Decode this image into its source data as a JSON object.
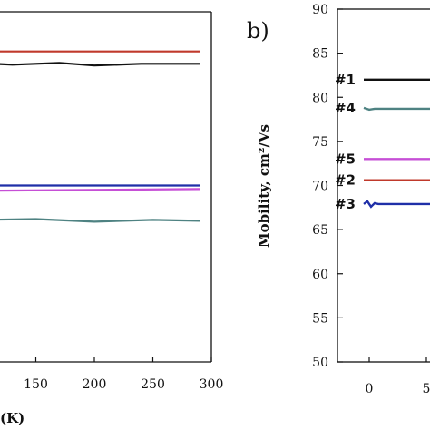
{
  "chart_data": [
    {
      "type": "line",
      "xlim": [
        100,
        300
      ],
      "x_ticks": [
        150,
        200,
        250,
        300
      ],
      "x_tick_labels": [
        "150",
        "200",
        "250",
        "300"
      ],
      "xlabel_visible": "(K)",
      "grid": false,
      "series": [
        {
          "color": "#c0392b",
          "x": [
            100,
            290
          ],
          "y": [
            85.2,
            85.2
          ]
        },
        {
          "color": "#111111",
          "x": [
            100,
            130,
            170,
            200,
            240,
            290
          ],
          "y": [
            83.9,
            83.7,
            83.9,
            83.6,
            83.8,
            83.8
          ]
        },
        {
          "color": "#1f2fa8",
          "x": [
            100,
            290
          ],
          "y": [
            70.0,
            70.0
          ]
        },
        {
          "color": "#c64fd6",
          "x": [
            100,
            290
          ],
          "y": [
            69.4,
            69.6
          ]
        },
        {
          "color": "#4e8282",
          "x": [
            100,
            150,
            200,
            250,
            290
          ],
          "y": [
            66.1,
            66.2,
            65.9,
            66.1,
            66.0
          ]
        }
      ]
    },
    {
      "type": "line",
      "panel_label": "b)",
      "ylabel": "Mobility, cm²/Vs",
      "ylim": [
        50,
        90
      ],
      "y_ticks": [
        50,
        55,
        60,
        65,
        70,
        75,
        80,
        85,
        90
      ],
      "y_tick_labels": [
        "50",
        "55",
        "60",
        "65",
        "70",
        "75",
        "80",
        "85",
        "90"
      ],
      "x_tick_labels_visible": [
        "0",
        "5"
      ],
      "grid": false,
      "legend": [
        {
          "label": "#1",
          "color": "#111111",
          "y": 82.0
        },
        {
          "label": "#4",
          "color": "#4e8282",
          "y": 78.8
        },
        {
          "label": "#5",
          "color": "#c64fd6",
          "y": 73.0
        },
        {
          "label": "#2",
          "color": "#c0392b",
          "y": 70.6
        },
        {
          "label": "#3",
          "color": "#1f2fa8",
          "y": 67.9
        }
      ]
    }
  ]
}
